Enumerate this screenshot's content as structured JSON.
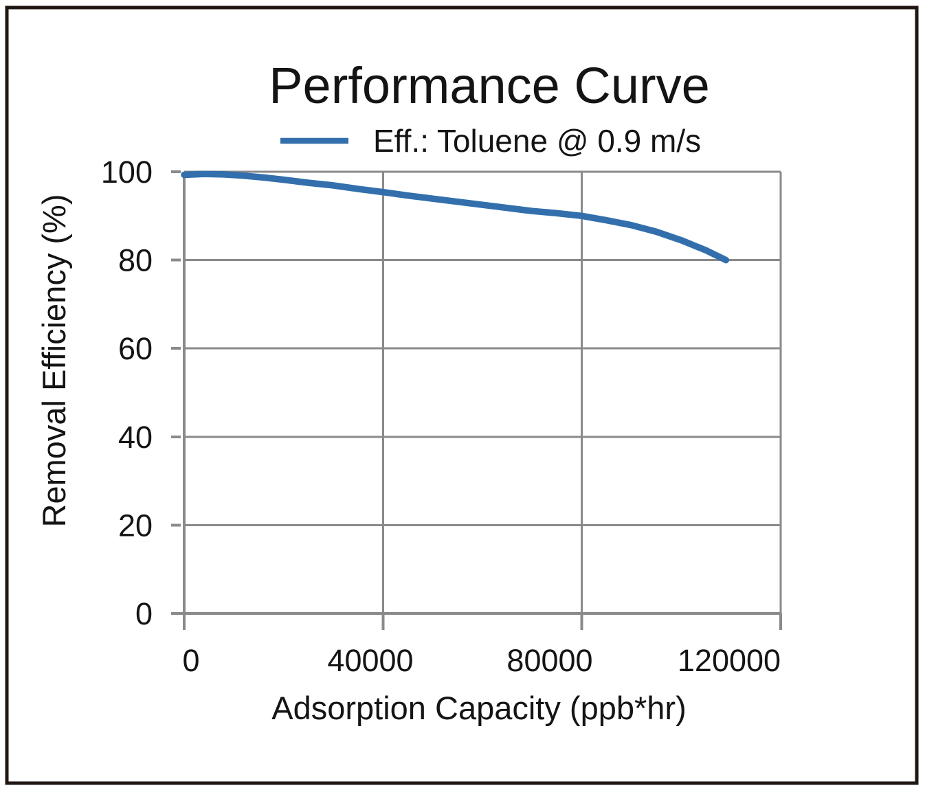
{
  "chart_data": {
    "type": "line",
    "title": "Performance Curve",
    "xlabel": "Adsorption Capacity (ppb*hr)",
    "ylabel": "Removal Efficiency (%)",
    "xlim": [
      0,
      120000
    ],
    "ylim": [
      0,
      100
    ],
    "grid": true,
    "legend_position": "top-center",
    "xticks": {
      "values": [
        0,
        40000,
        80000,
        120000
      ],
      "labels": [
        "0",
        "40000",
        "80000",
        "120000"
      ]
    },
    "yticks": {
      "values": [
        0,
        20,
        40,
        60,
        80,
        100
      ],
      "labels": [
        "0",
        "20",
        "40",
        "60",
        "80",
        "100"
      ]
    },
    "series": [
      {
        "name": "Eff.: Toluene @ 0.9 m/s",
        "color": "#336fad",
        "x": [
          0,
          4000,
          8000,
          12000,
          16000,
          20000,
          25000,
          30000,
          35000,
          40000,
          45000,
          50000,
          55000,
          60000,
          65000,
          70000,
          75000,
          80000,
          85000,
          90000,
          95000,
          100000,
          105000,
          109000
        ],
        "y": [
          99.3,
          99.5,
          99.4,
          99.1,
          98.7,
          98.2,
          97.5,
          96.9,
          96.1,
          95.4,
          94.6,
          93.9,
          93.2,
          92.5,
          91.8,
          91.1,
          90.6,
          90.0,
          89.0,
          87.9,
          86.4,
          84.5,
          82.2,
          80.0
        ]
      }
    ],
    "colors": {
      "grid": "#8a8a8a",
      "axis": "#8a8a8a",
      "text": "#141414",
      "series_blue": "#336fad",
      "background": "#ffffff",
      "border": "#201713"
    }
  }
}
